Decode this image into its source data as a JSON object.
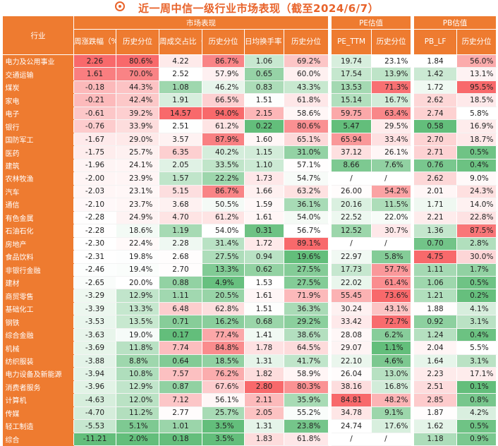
{
  "title": "近一周中信一级行业市场表现（截至2024/6/7）",
  "headers": {
    "industry": "行业",
    "market": "市场表现",
    "pe": "PE估值",
    "pb": "PB估值",
    "weekly_change": "周涨跌幅（%）",
    "hist_pct": "历史分位",
    "turnover_share": "周成交占比（%）",
    "daily_turnover": "日均换手率（%）",
    "pe_ttm": "PE_TTM",
    "pb_lf": "PB_LF"
  },
  "rows": [
    {
      "name": "电力及公用事业",
      "chg": "2.26",
      "chg_p": "80.6%",
      "vol": "4.22",
      "vol_p": "86.7%",
      "tr": "1.06",
      "tr_p": "69.2%",
      "pe": "19.74",
      "pe_p": "23.1%",
      "pb": "1.84",
      "pb_p": "56.0%"
    },
    {
      "name": "交通运输",
      "chg": "1.61",
      "chg_p": "70.0%",
      "vol": "2.52",
      "vol_p": "57.9%",
      "tr": "0.65",
      "tr_p": "60.0%",
      "pe": "17.54",
      "pe_p": "13.9%",
      "pb": "1.42",
      "pb_p": "13.1%"
    },
    {
      "name": "煤炭",
      "chg": "-0.18",
      "chg_p": "44.3%",
      "vol": "1.08",
      "vol_p": "46.2%",
      "tr": "0.83",
      "tr_p": "43.3%",
      "pe": "13.53",
      "pe_p": "71.3%",
      "pb": "1.72",
      "pb_p": "95.5%"
    },
    {
      "name": "家电",
      "chg": "-0.21",
      "chg_p": "42.4%",
      "vol": "1.91",
      "vol_p": "66.5%",
      "tr": "1.51",
      "tr_p": "61.8%",
      "pe": "15.14",
      "pe_p": "16.7%",
      "pb": "2.62",
      "pb_p": "18.5%"
    },
    {
      "name": "电子",
      "chg": "-0.61",
      "chg_p": "39.2%",
      "vol": "14.57",
      "vol_p": "94.0%",
      "tr": "2.15",
      "tr_p": "58.6%",
      "pe": "59.75",
      "pe_p": "63.4%",
      "pb": "2.74",
      "pb_p": "5.8%"
    },
    {
      "name": "银行",
      "chg": "-0.76",
      "chg_p": "33.9%",
      "vol": "2.51",
      "vol_p": "61.2%",
      "tr": "0.22",
      "tr_p": "80.6%",
      "pe": "5.47",
      "pe_p": "29.5%",
      "pb": "0.58",
      "pb_p": "16.9%"
    },
    {
      "name": "国防军工",
      "chg": "-1.67",
      "chg_p": "29.0%",
      "vol": "3.57",
      "vol_p": "87.9%",
      "tr": "1.60",
      "tr_p": "65.1%",
      "pe": "65.94",
      "pe_p": "33.4%",
      "pb": "2.70",
      "pb_p": "18.7%"
    },
    {
      "name": "医药",
      "chg": "-1.75",
      "chg_p": "25.7%",
      "vol": "6.35",
      "vol_p": "40.2%",
      "tr": "1.15",
      "tr_p": "31.0%",
      "pe": "37.12",
      "pe_p": "26.1%",
      "pb": "2.71",
      "pb_p": "0.5%"
    },
    {
      "name": "建筑",
      "chg": "-1.96",
      "chg_p": "24.1%",
      "vol": "2.05",
      "vol_p": "33.5%",
      "tr": "1.10",
      "tr_p": "57.1%",
      "pe": "8.66",
      "pe_p": "7.6%",
      "pb": "0.76",
      "pb_p": "0.4%"
    },
    {
      "name": "农林牧渔",
      "chg": "-2.00",
      "chg_p": "23.9%",
      "vol": "1.57",
      "vol_p": "22.2%",
      "tr": "1.73",
      "tr_p": "54.7%",
      "pe": "/",
      "pe_p": "/",
      "pb": "2.62",
      "pb_p": "9.0%"
    },
    {
      "name": "汽车",
      "chg": "-2.03",
      "chg_p": "23.1%",
      "vol": "5.15",
      "vol_p": "86.7%",
      "tr": "1.66",
      "tr_p": "63.2%",
      "pe": "26.00",
      "pe_p": "54.2%",
      "pb": "2.01",
      "pb_p": "24.3%"
    },
    {
      "name": "通信",
      "chg": "-2.10",
      "chg_p": "23.7%",
      "vol": "3.68",
      "vol_p": "50.5%",
      "tr": "1.59",
      "tr_p": "36.1%",
      "pe": "20.16",
      "pe_p": "11.5%",
      "pb": "1.71",
      "pb_p": "14.0%"
    },
    {
      "name": "有色金属",
      "chg": "-2.28",
      "chg_p": "24.9%",
      "vol": "4.70",
      "vol_p": "61.2%",
      "tr": "1.61",
      "tr_p": "54.0%",
      "pe": "22.52",
      "pe_p": "22.0%",
      "pb": "2.21",
      "pb_p": "22.8%"
    },
    {
      "name": "石油石化",
      "chg": "-2.28",
      "chg_p": "18.6%",
      "vol": "1.19",
      "vol_p": "54.0%",
      "tr": "0.31",
      "tr_p": "56.7%",
      "pe": "12.52",
      "pe_p": "30.7%",
      "pb": "1.36",
      "pb_p": "87.5%"
    },
    {
      "name": "房地产",
      "chg": "-2.30",
      "chg_p": "22.4%",
      "vol": "2.28",
      "vol_p": "31.4%",
      "tr": "1.72",
      "tr_p": "89.1%",
      "pe": "/",
      "pe_p": "/",
      "pb": "0.70",
      "pb_p": "2.8%"
    },
    {
      "name": "食品饮料",
      "chg": "-2.31",
      "chg_p": "19.8%",
      "vol": "2.68",
      "vol_p": "27.5%",
      "tr": "0.94",
      "tr_p": "19.6%",
      "pe": "22.97",
      "pe_p": "5.8%",
      "pb": "4.75",
      "pb_p": "30.0%"
    },
    {
      "name": "非银行金融",
      "chg": "-2.46",
      "chg_p": "19.4%",
      "vol": "2.70",
      "vol_p": "13.3%",
      "tr": "0.62",
      "tr_p": "27.5%",
      "pe": "17.73",
      "pe_p": "57.7%",
      "pb": "1.11",
      "pb_p": "1.7%"
    },
    {
      "name": "建材",
      "chg": "-2.65",
      "chg_p": "20.0%",
      "vol": "0.88",
      "vol_p": "4.9%",
      "tr": "1.53",
      "tr_p": "27.5%",
      "pe": "22.02",
      "pe_p": "61.4%",
      "pb": "1.06",
      "pb_p": "0.5%"
    },
    {
      "name": "商贸零售",
      "chg": "-3.29",
      "chg_p": "12.9%",
      "vol": "1.11",
      "vol_p": "20.5%",
      "tr": "1.61",
      "tr_p": "71.9%",
      "pe": "55.45",
      "pe_p": "73.6%",
      "pb": "1.21",
      "pb_p": "0.2%"
    },
    {
      "name": "基础化工",
      "chg": "-3.39",
      "chg_p": "13.3%",
      "vol": "6.48",
      "vol_p": "62.8%",
      "tr": "1.51",
      "tr_p": "36.3%",
      "pe": "30.24",
      "pe_p": "43.1%",
      "pb": "1.88",
      "pb_p": "4.1%"
    },
    {
      "name": "钢铁",
      "chg": "-3.53",
      "chg_p": "13.5%",
      "vol": "0.71",
      "vol_p": "16.2%",
      "tr": "0.68",
      "tr_p": "29.2%",
      "pe": "33.42",
      "pe_p": "72.7%",
      "pb": "0.92",
      "pb_p": "3.1%"
    },
    {
      "name": "综合金融",
      "chg": "-3.63",
      "chg_p": "19.0%",
      "vol": "0.17",
      "vol_p": "77.4%",
      "tr": "1.41",
      "tr_p": "38.6%",
      "pe": "28.08",
      "pe_p": "6.2%",
      "pb": "1.24",
      "pb_p": "0.4%"
    },
    {
      "name": "机械",
      "chg": "-3.69",
      "chg_p": "11.8%",
      "vol": "7.74",
      "vol_p": "84.8%",
      "tr": "1.78",
      "tr_p": "64.5%",
      "pe": "29.07",
      "pe_p": "1.1%",
      "pb": "2.04",
      "pb_p": "5.5%"
    },
    {
      "name": "纺织服装",
      "chg": "-3.88",
      "chg_p": "8.8%",
      "vol": "0.64",
      "vol_p": "18.5%",
      "tr": "1.31",
      "tr_p": "41.7%",
      "pe": "22.10",
      "pe_p": "4.6%",
      "pb": "1.64",
      "pb_p": "3.1%"
    },
    {
      "name": "电力设备及新能源",
      "chg": "-3.94",
      "chg_p": "10.8%",
      "vol": "7.57",
      "vol_p": "76.2%",
      "tr": "1.82",
      "tr_p": "58.9%",
      "pe": "26.04",
      "pe_p": "13.0%",
      "pb": "2.23",
      "pb_p": "17.1%"
    },
    {
      "name": "消费者服务",
      "chg": "-3.96",
      "chg_p": "12.9%",
      "vol": "0.87",
      "vol_p": "67.6%",
      "tr": "2.80",
      "tr_p": "80.3%",
      "pe": "38.16",
      "pe_p": "16.8%",
      "pb": "2.51",
      "pb_p": "0.1%"
    },
    {
      "name": "计算机",
      "chg": "-4.63",
      "chg_p": "12.0%",
      "vol": "7.12",
      "vol_p": "56.1%",
      "tr": "2.11",
      "tr_p": "35.9%",
      "pe": "84.81",
      "pe_p": "48.2%",
      "pb": "2.85",
      "pb_p": "0.8%"
    },
    {
      "name": "传媒",
      "chg": "-4.70",
      "chg_p": "11.2%",
      "vol": "2.77",
      "vol_p": "25.7%",
      "tr": "2.05",
      "tr_p": "55.2%",
      "pe": "34.78",
      "pe_p": "9.1%",
      "pb": "1.87",
      "pb_p": "4.2%"
    },
    {
      "name": "轻工制造",
      "chg": "-5.53",
      "chg_p": "5.1%",
      "vol": "1.01",
      "vol_p": "3.5%",
      "tr": "1.31",
      "tr_p": "23.8%",
      "pe": "24.74",
      "pe_p": "17.6%",
      "pb": "1.62",
      "pb_p": "0.5%"
    },
    {
      "name": "综合",
      "chg": "-11.21",
      "chg_p": "2.0%",
      "vol": "0.18",
      "vol_p": "3.5%",
      "tr": "1.83",
      "tr_p": "61.8%",
      "pe": "/",
      "pe_p": "/",
      "pb": "1.18",
      "pb_p": "0.9%"
    }
  ],
  "colors": {
    "header_orange": "#ee7b30",
    "title_orange": "#e8632a",
    "high_red": "#f8696b",
    "mid_white": "#ffffff",
    "low_green": "#63be7b"
  }
}
